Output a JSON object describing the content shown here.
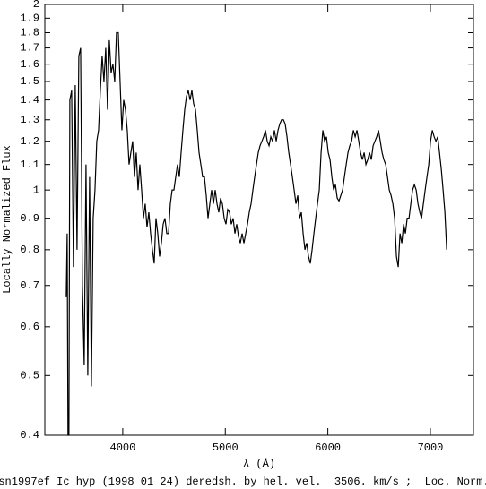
{
  "chart_data": {
    "type": "line",
    "xlabel": "λ (Å)",
    "ylabel": "Locally Normalized Flux",
    "caption": "sn1997ef Ic hyp (1998 01 24) deredsh. by hel. vel.  3506. km/s ;  Loc. Norm.",
    "xlim": [
      3240,
      7420
    ],
    "xticks": [
      4000,
      5000,
      6000,
      7000
    ],
    "ylim": [
      0.4,
      2
    ],
    "yscale": "log",
    "yticks": [
      0.4,
      0.5,
      0.6,
      0.7,
      0.8,
      0.9,
      1,
      1.1,
      1.2,
      1.3,
      1.4,
      1.5,
      1.6,
      1.7,
      1.8,
      1.9,
      2
    ],
    "color": "#000000",
    "x": [
      3449,
      3458,
      3466,
      3475,
      3484,
      3501.5,
      3519,
      3536.5,
      3554,
      3571.5,
      3589,
      3606.5,
      3624,
      3641.5,
      3659,
      3676.5,
      3694,
      3711.5,
      3729,
      3746.5,
      3764,
      3781.5,
      3799,
      3816.5,
      3834,
      3851.5,
      3869,
      3886.5,
      3904,
      3921.5,
      3939,
      3956.5,
      3974,
      3991.5,
      4009,
      4026.5,
      4044,
      4061.5,
      4079,
      4096.5,
      4114,
      4131.5,
      4149,
      4166.5,
      4184,
      4201.5,
      4219,
      4236.5,
      4254,
      4271.5,
      4289,
      4306.5,
      4324,
      4341.5,
      4359,
      4376.5,
      4394,
      4411.5,
      4429,
      4446.5,
      4464,
      4481.5,
      4499,
      4516.5,
      4534,
      4551.5,
      4569,
      4586.5,
      4604,
      4621.5,
      4639,
      4656.5,
      4674,
      4691.5,
      4709,
      4726.5,
      4744,
      4761.5,
      4779,
      4796.5,
      4814,
      4831.5,
      4849,
      4866.5,
      4884,
      4901.5,
      4919,
      4936.5,
      4954,
      4971.5,
      4989,
      5006.5,
      5024,
      5041.5,
      5059,
      5076.5,
      5094,
      5111.5,
      5129,
      5146.5,
      5164,
      5181.5,
      5199,
      5216.5,
      5234,
      5251.5,
      5269,
      5286.5,
      5304,
      5321.5,
      5339,
      5356.5,
      5374,
      5391.5,
      5409,
      5426.5,
      5444,
      5461.5,
      5479,
      5496.5,
      5514,
      5531.5,
      5549,
      5566.5,
      5584,
      5601.5,
      5619,
      5636.5,
      5654,
      5671.5,
      5689,
      5706.5,
      5724,
      5741.5,
      5759,
      5776.5,
      5794,
      5811.5,
      5829,
      5846.5,
      5864,
      5881.5,
      5899,
      5916.5,
      5934,
      5951.5,
      5969,
      5986.5,
      6004,
      6021.5,
      6039,
      6056.5,
      6074,
      6091.5,
      6109,
      6126.5,
      6144,
      6161.5,
      6179,
      6196.5,
      6214,
      6231.5,
      6249,
      6266.5,
      6284,
      6301.5,
      6319,
      6336.5,
      6354,
      6371.5,
      6389,
      6406.5,
      6424,
      6441.5,
      6459,
      6476.5,
      6494,
      6511.5,
      6529,
      6546.5,
      6564,
      6581.5,
      6599,
      6616.5,
      6634,
      6651.5,
      6669,
      6686.5,
      6704,
      6721.5,
      6739,
      6756.5,
      6774,
      6791.5,
      6809,
      6826.5,
      6844,
      6861.5,
      6879,
      6896.5,
      6914,
      6931.5,
      6949,
      6966.5,
      6984,
      7001.5,
      7019,
      7036.5,
      7054,
      7071.5,
      7089,
      7106.5,
      7124,
      7141.5,
      7159
    ],
    "values": [
      0.67,
      0.85,
      0.4,
      0.4,
      1.4,
      1.45,
      0.75,
      1.48,
      0.8,
      1.65,
      1.7,
      0.7,
      0.52,
      1.1,
      0.5,
      1.05,
      0.48,
      0.9,
      1.0,
      1.2,
      1.25,
      1.45,
      1.65,
      1.5,
      1.7,
      1.35,
      1.75,
      1.55,
      1.6,
      1.5,
      1.8,
      1.8,
      1.5,
      1.25,
      1.4,
      1.35,
      1.25,
      1.1,
      1.15,
      1.2,
      1.05,
      1.15,
      1.0,
      1.1,
      1.0,
      0.9,
      0.95,
      0.87,
      0.92,
      0.85,
      0.8,
      0.76,
      0.9,
      0.85,
      0.78,
      0.82,
      0.88,
      0.9,
      0.85,
      0.85,
      0.95,
      1.0,
      1.0,
      1.05,
      1.1,
      1.05,
      1.15,
      1.25,
      1.35,
      1.42,
      1.45,
      1.4,
      1.45,
      1.38,
      1.35,
      1.25,
      1.15,
      1.1,
      1.05,
      1.05,
      0.98,
      0.9,
      0.95,
      1.0,
      0.95,
      1.0,
      0.95,
      0.92,
      0.97,
      0.95,
      0.9,
      0.88,
      0.93,
      0.92,
      0.88,
      0.9,
      0.85,
      0.88,
      0.84,
      0.82,
      0.85,
      0.82,
      0.85,
      0.88,
      0.92,
      0.95,
      1.0,
      1.05,
      1.1,
      1.15,
      1.18,
      1.2,
      1.22,
      1.25,
      1.2,
      1.18,
      1.22,
      1.2,
      1.25,
      1.2,
      1.25,
      1.28,
      1.3,
      1.3,
      1.28,
      1.22,
      1.15,
      1.1,
      1.05,
      1.0,
      0.95,
      0.98,
      0.9,
      0.92,
      0.85,
      0.8,
      0.82,
      0.78,
      0.76,
      0.8,
      0.85,
      0.9,
      0.95,
      1.0,
      1.15,
      1.25,
      1.2,
      1.22,
      1.15,
      1.12,
      1.05,
      1.0,
      1.02,
      0.97,
      0.96,
      0.98,
      1.0,
      1.05,
      1.1,
      1.15,
      1.18,
      1.2,
      1.25,
      1.22,
      1.25,
      1.2,
      1.15,
      1.12,
      1.15,
      1.1,
      1.12,
      1.15,
      1.12,
      1.18,
      1.2,
      1.22,
      1.25,
      1.2,
      1.15,
      1.12,
      1.1,
      1.05,
      1.0,
      0.98,
      0.95,
      0.9,
      0.78,
      0.75,
      0.85,
      0.82,
      0.88,
      0.85,
      0.9,
      0.9,
      0.95,
      1.0,
      1.02,
      1.0,
      0.95,
      0.92,
      0.9,
      0.95,
      1.0,
      1.05,
      1.1,
      1.2,
      1.25,
      1.22,
      1.2,
      1.22,
      1.15,
      1.08,
      1.0,
      0.92,
      0.8
    ]
  }
}
